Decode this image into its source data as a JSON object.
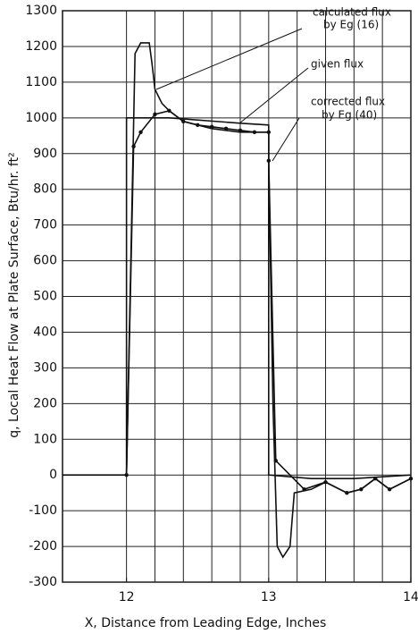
{
  "chart_data": {
    "type": "line",
    "xlabel": "X, Distance from Leading Edge, Inches",
    "ylabel": "q, Local Heat Flow at Plate Surface, Btu/hr. ft²",
    "xlim": [
      11.55,
      14
    ],
    "ylim": [
      -300,
      1300
    ],
    "xticks": [
      12,
      13,
      14
    ],
    "yticks": [
      -300,
      -200,
      -100,
      0,
      100,
      200,
      300,
      400,
      500,
      600,
      700,
      800,
      900,
      1000,
      1100,
      1200,
      1300
    ],
    "xgrid": [
      12,
      12.2,
      12.4,
      12.6,
      12.8,
      13,
      13.2,
      13.4,
      13.6,
      13.8,
      14
    ],
    "grid": true,
    "series": [
      {
        "name": "calculated flux",
        "note": "by Eg (16)",
        "color": "#111111",
        "markers": false,
        "x": [
          12.0,
          12.06,
          12.1,
          12.16,
          12.18,
          12.2,
          12.25,
          12.3,
          12.4,
          12.6,
          12.8,
          13.0,
          13.0,
          13.03,
          13.06,
          13.1,
          13.15,
          13.18,
          13.3,
          13.4,
          13.55,
          13.65,
          13.75,
          13.85,
          14.0
        ],
        "values": [
          0,
          1180,
          1210,
          1210,
          1150,
          1080,
          1040,
          1020,
          990,
          970,
          960,
          960,
          880,
          200,
          -200,
          -230,
          -200,
          -50,
          -40,
          -20,
          -50,
          -40,
          -10,
          -40,
          -10
        ]
      },
      {
        "name": "given flux",
        "color": "#111111",
        "markers": false,
        "x": [
          11.55,
          12.0,
          12.0,
          12.3,
          12.8,
          13.0,
          13.0,
          13.3,
          13.6,
          14.0
        ],
        "values": [
          0,
          0,
          1000,
          1000,
          985,
          980,
          0,
          -10,
          -10,
          0
        ]
      },
      {
        "name": "corrected flux",
        "note": "by Eg (40)",
        "color": "#111111",
        "markers": true,
        "x": [
          12.0,
          12.05,
          12.1,
          12.2,
          12.3,
          12.4,
          12.5,
          12.6,
          12.7,
          12.8,
          12.9,
          13.0,
          13.0,
          13.05,
          13.25,
          13.4,
          13.55,
          13.65,
          13.75,
          13.85,
          14.0
        ],
        "values": [
          0,
          920,
          960,
          1010,
          1020,
          990,
          980,
          975,
          970,
          965,
          960,
          960,
          880,
          40,
          -40,
          -20,
          -50,
          -40,
          -10,
          -40,
          -10
        ]
      }
    ]
  }
}
